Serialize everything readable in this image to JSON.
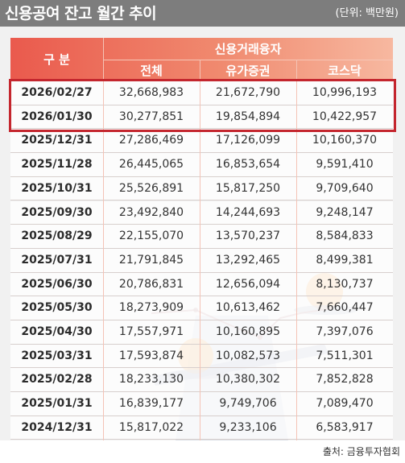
{
  "header": {
    "title": "신용공여 잔고 월간 추이",
    "unit": "(단위: 백만원)"
  },
  "table": {
    "col_group": "구 분",
    "group_label": "신용거래융자",
    "columns": [
      "전체",
      "유가증권",
      "코스닥"
    ],
    "rows": [
      {
        "date": "2026/02/27",
        "total": "32,668,983",
        "kospi": "21,672,790",
        "kosdaq": "10,996,193"
      },
      {
        "date": "2026/01/30",
        "total": "30,277,851",
        "kospi": "19,854,894",
        "kosdaq": "10,422,957"
      },
      {
        "date": "2025/12/31",
        "total": "27,286,469",
        "kospi": "17,126,099",
        "kosdaq": "10,160,370"
      },
      {
        "date": "2025/11/28",
        "total": "26,445,065",
        "kospi": "16,853,654",
        "kosdaq": "9,591,410"
      },
      {
        "date": "2025/10/31",
        "total": "25,526,891",
        "kospi": "15,817,250",
        "kosdaq": "9,709,640"
      },
      {
        "date": "2025/09/30",
        "total": "23,492,840",
        "kospi": "14,244,693",
        "kosdaq": "9,248,147"
      },
      {
        "date": "2025/08/29",
        "total": "22,155,070",
        "kospi": "13,570,237",
        "kosdaq": "8,584,833"
      },
      {
        "date": "2025/07/31",
        "total": "21,791,845",
        "kospi": "13,292,465",
        "kosdaq": "8,499,381"
      },
      {
        "date": "2025/06/30",
        "total": "20,786,831",
        "kospi": "12,656,094",
        "kosdaq": "8,130,737"
      },
      {
        "date": "2025/05/30",
        "total": "18,273,909",
        "kospi": "10,613,462",
        "kosdaq": "7,660,447"
      },
      {
        "date": "2025/04/30",
        "total": "17,557,971",
        "kospi": "10,160,895",
        "kosdaq": "7,397,076"
      },
      {
        "date": "2025/03/31",
        "total": "17,593,874",
        "kospi": "10,082,573",
        "kosdaq": "7,511,301"
      },
      {
        "date": "2025/02/28",
        "total": "18,233,130",
        "kospi": "10,380,302",
        "kosdaq": "7,852,828"
      },
      {
        "date": "2025/01/31",
        "total": "16,839,177",
        "kospi": "9,749,706",
        "kosdaq": "7,089,470"
      },
      {
        "date": "2024/12/31",
        "total": "15,817,022",
        "kospi": "9,233,106",
        "kosdaq": "6,583,917"
      }
    ]
  },
  "highlight_color": "#c4262e",
  "accent_color": "#ea5a4d",
  "source": "출처: 금융투자협회"
}
